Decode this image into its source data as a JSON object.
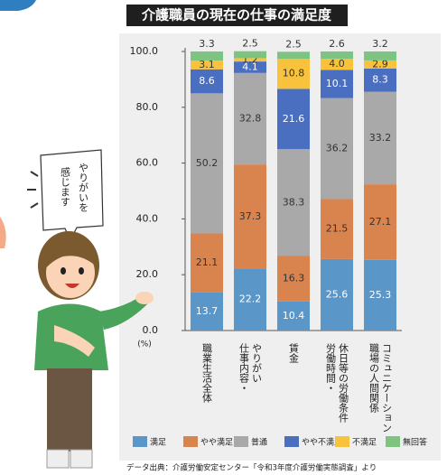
{
  "chart_data": {
    "type": "stacked-bar",
    "title": "介護職員の現在の仕事の満足度",
    "unit_label": "(%)",
    "categories": [
      [
        "職業生活全体"
      ],
      [
        "仕事内容・",
        "やりがい"
      ],
      [
        "賃金"
      ],
      [
        "労働時間・",
        "休日等の労働条件"
      ],
      [
        "職場の人間関係",
        "コミュニケーション"
      ]
    ],
    "series": [
      {
        "name": "満足",
        "color": "#5b96c9",
        "values": [
          13.7,
          22.2,
          10.4,
          25.6,
          25.3
        ]
      },
      {
        "name": "やや満足",
        "color": "#d9844f",
        "values": [
          21.1,
          37.3,
          16.3,
          21.5,
          27.1
        ]
      },
      {
        "name": "普通",
        "color": "#a9a9a9",
        "values": [
          50.2,
          32.8,
          38.3,
          36.2,
          33.2
        ]
      },
      {
        "name": "やや不満足",
        "color": "#4a6ec0",
        "values": [
          8.6,
          4.1,
          21.6,
          10.1,
          8.3
        ]
      },
      {
        "name": "不満足",
        "color": "#f9c23c",
        "values": [
          3.1,
          1.2,
          10.8,
          4.0,
          2.9
        ],
        "value_labels": [
          "3.1",
          "1.2",
          "10.8",
          "4.0",
          "2.9"
        ]
      },
      {
        "name": "無回答",
        "color": "#7cc47f",
        "values": [
          3.3,
          2.5,
          2.5,
          2.6,
          3.2
        ]
      }
    ],
    "ylim": [
      0,
      100
    ],
    "yticks": [
      {
        "value": 0,
        "label": "0.0"
      },
      {
        "value": 20,
        "label": "20.0"
      },
      {
        "value": 40,
        "label": "40.0"
      },
      {
        "value": 60,
        "label": "60.0"
      },
      {
        "value": 80,
        "label": "80.0"
      },
      {
        "value": 100,
        "label": "100.0"
      }
    ],
    "source": "データ出典：介護労働安定センター「令和3年度介護労働実態調査」より"
  },
  "speech_bubble": [
    "やりがいを",
    "感じます"
  ]
}
